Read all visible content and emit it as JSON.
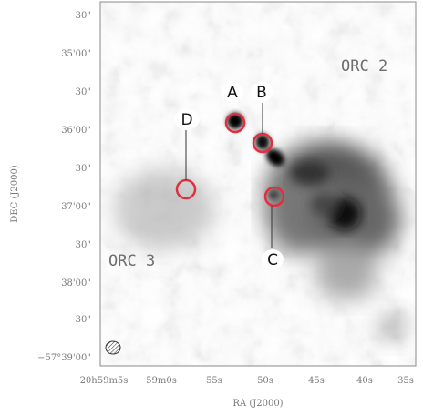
{
  "image": {
    "orc_labels": [
      "ORC 2",
      "ORC 3"
    ],
    "source_labels": [
      "A",
      "B",
      "C",
      "D"
    ]
  },
  "axes": {
    "xlabel": "RA (J2000)",
    "ylabel": "DEC (J2000)",
    "x_ticks": [
      "20h59m5s",
      "59m0s",
      "55s",
      "50s",
      "45s",
      "40s",
      "35s"
    ],
    "y_ticks": [
      "30\"",
      "35'00\"",
      "30\"",
      "36'00\"",
      "30\"",
      "37'00\"",
      "30\"",
      "38'00\"",
      "30\"",
      "−57°39'00\""
    ]
  },
  "colors": {
    "circle": "#e03040",
    "frame": "#8a8a8a",
    "label_bg": "#ffffff"
  }
}
